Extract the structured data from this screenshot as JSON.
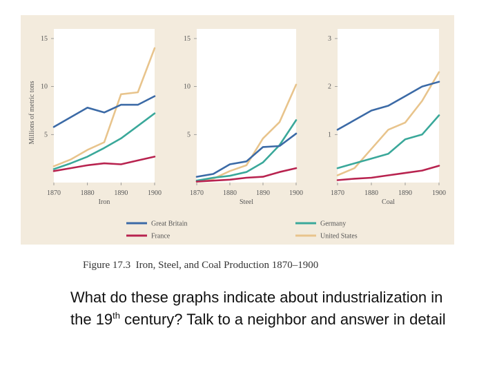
{
  "figure": {
    "caption_label": "Figure 17.3",
    "caption_text": "Iron, Steel, and Coal Production 1870–1900"
  },
  "question": {
    "line1": "What do these graphs indicate about industrialization in the 19",
    "sup": "th",
    "line2": " century? Talk to a neighbor and answer in detail"
  },
  "legend": [
    {
      "name": "Great Britain",
      "color": "#3b6aa6"
    },
    {
      "name": "Germany",
      "color": "#3aa89a"
    },
    {
      "name": "France",
      "color": "#b8234f"
    },
    {
      "name": "United States",
      "color": "#e8c48c"
    }
  ],
  "chart_data": [
    {
      "type": "line",
      "title": "",
      "xlabel": "Iron",
      "ylabel": "Millions of metric tons",
      "ylim": [
        0,
        16
      ],
      "yticks": [
        "5",
        "10",
        "15"
      ],
      "xticks": [
        "1870",
        "1880",
        "1890",
        "1900"
      ],
      "x": [
        1870,
        1875,
        1880,
        1885,
        1890,
        1895,
        1900
      ],
      "series": [
        {
          "name": "Great Britain",
          "values": [
            5.8,
            6.8,
            7.8,
            7.3,
            8.1,
            8.1,
            9.0
          ]
        },
        {
          "name": "Germany",
          "values": [
            1.4,
            2.0,
            2.7,
            3.6,
            4.6,
            5.9,
            7.2
          ]
        },
        {
          "name": "France",
          "values": [
            1.2,
            1.5,
            1.8,
            2.0,
            1.9,
            2.3,
            2.7
          ]
        },
        {
          "name": "United States",
          "values": [
            1.7,
            2.4,
            3.4,
            4.2,
            9.2,
            9.4,
            14.0
          ]
        }
      ]
    },
    {
      "type": "line",
      "title": "",
      "xlabel": "Steel",
      "ylabel": "",
      "ylim": [
        0,
        16
      ],
      "yticks": [
        "5",
        "10",
        "15"
      ],
      "xticks": [
        "1870",
        "1880",
        "1890",
        "1900"
      ],
      "x": [
        1870,
        1875,
        1880,
        1885,
        1890,
        1895,
        1900
      ],
      "series": [
        {
          "name": "Great Britain",
          "values": [
            0.6,
            0.9,
            1.9,
            2.2,
            3.7,
            3.8,
            5.1
          ]
        },
        {
          "name": "Germany",
          "values": [
            0.2,
            0.5,
            0.7,
            1.1,
            2.1,
            3.9,
            6.5
          ]
        },
        {
          "name": "France",
          "values": [
            0.1,
            0.2,
            0.3,
            0.5,
            0.6,
            1.1,
            1.5
          ]
        },
        {
          "name": "United States",
          "values": [
            0.1,
            0.4,
            1.2,
            1.8,
            4.6,
            6.3,
            10.2
          ]
        }
      ]
    },
    {
      "type": "line",
      "title": "",
      "xlabel": "Coal",
      "ylabel": "",
      "ylim": [
        0,
        3.2
      ],
      "yticks": [
        "1",
        "2",
        "3"
      ],
      "xticks": [
        "1870",
        "1880",
        "1890",
        "1900"
      ],
      "x": [
        1870,
        1875,
        1880,
        1885,
        1890,
        1895,
        1900
      ],
      "series": [
        {
          "name": "Great Britain",
          "values": [
            1.1,
            1.3,
            1.5,
            1.6,
            1.8,
            2.0,
            2.1
          ]
        },
        {
          "name": "Germany",
          "values": [
            0.3,
            0.4,
            0.5,
            0.6,
            0.9,
            1.0,
            1.4
          ]
        },
        {
          "name": "France",
          "values": [
            0.05,
            0.08,
            0.1,
            0.15,
            0.2,
            0.25,
            0.35
          ]
        },
        {
          "name": "United States",
          "values": [
            0.15,
            0.3,
            0.7,
            1.1,
            1.25,
            1.7,
            2.3
          ]
        }
      ]
    }
  ]
}
